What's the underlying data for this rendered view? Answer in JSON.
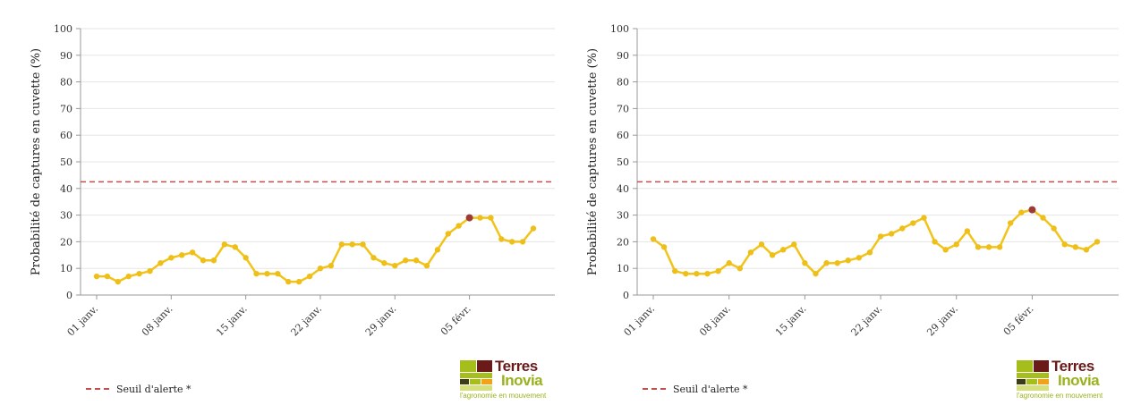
{
  "colors": {
    "series_line": "#f2c318",
    "series_point": "#eebf18",
    "highlight_point": "#9b3a37",
    "threshold": "#c0504d",
    "grid": "#e5e5e5",
    "axis": "#999999"
  },
  "legend": {
    "threshold_label": "Seuil d'alerte *"
  },
  "logo": {
    "brand_line1": "Terres",
    "brand_line2": "Inovia",
    "tagline": "l'agronomie en mouvement"
  },
  "chart_data": [
    {
      "type": "line",
      "ylabel": "Probabilité de captures en cuvette (%)",
      "ylim": [
        0,
        100
      ],
      "yticks": [
        0,
        10,
        20,
        30,
        40,
        50,
        60,
        70,
        80,
        90,
        100
      ],
      "grid": true,
      "threshold": 42.5,
      "x_tick_labels": [
        "01 janv.",
        "08 janv.",
        "15 janv.",
        "22 janv.",
        "29 janv.",
        "05 févr."
      ],
      "x_tick_index": [
        0,
        7,
        14,
        21,
        28,
        35
      ],
      "highlight_index": 35,
      "legend_position": "bottom-left",
      "series": [
        {
          "values": [
            7,
            7,
            5,
            7,
            8,
            9,
            12,
            14,
            15,
            16,
            13,
            13,
            19,
            18,
            14,
            8,
            8,
            8,
            5,
            5,
            7,
            10,
            11,
            19,
            19,
            19,
            14,
            12,
            11,
            13,
            13,
            11,
            17,
            23,
            26,
            29,
            29,
            29,
            21,
            20,
            20,
            25
          ]
        }
      ]
    },
    {
      "type": "line",
      "ylabel": "Probabilité de captures en cuvette (%)",
      "ylim": [
        0,
        100
      ],
      "yticks": [
        0,
        10,
        20,
        30,
        40,
        50,
        60,
        70,
        80,
        90,
        100
      ],
      "grid": true,
      "threshold": 42.5,
      "x_tick_labels": [
        "01 janv.",
        "08 janv.",
        "15 janv.",
        "22 janv.",
        "29 janv.",
        "05 févr."
      ],
      "x_tick_index": [
        0,
        7,
        14,
        21,
        28,
        35
      ],
      "highlight_index": 35,
      "legend_position": "bottom-left",
      "series": [
        {
          "values": [
            21,
            18,
            9,
            8,
            8,
            8,
            9,
            12,
            10,
            16,
            19,
            15,
            17,
            19,
            12,
            8,
            12,
            12,
            13,
            14,
            16,
            22,
            23,
            25,
            27,
            29,
            20,
            17,
            19,
            24,
            18,
            18,
            18,
            27,
            31,
            32,
            29,
            25,
            19,
            18,
            17,
            20
          ]
        }
      ]
    }
  ]
}
